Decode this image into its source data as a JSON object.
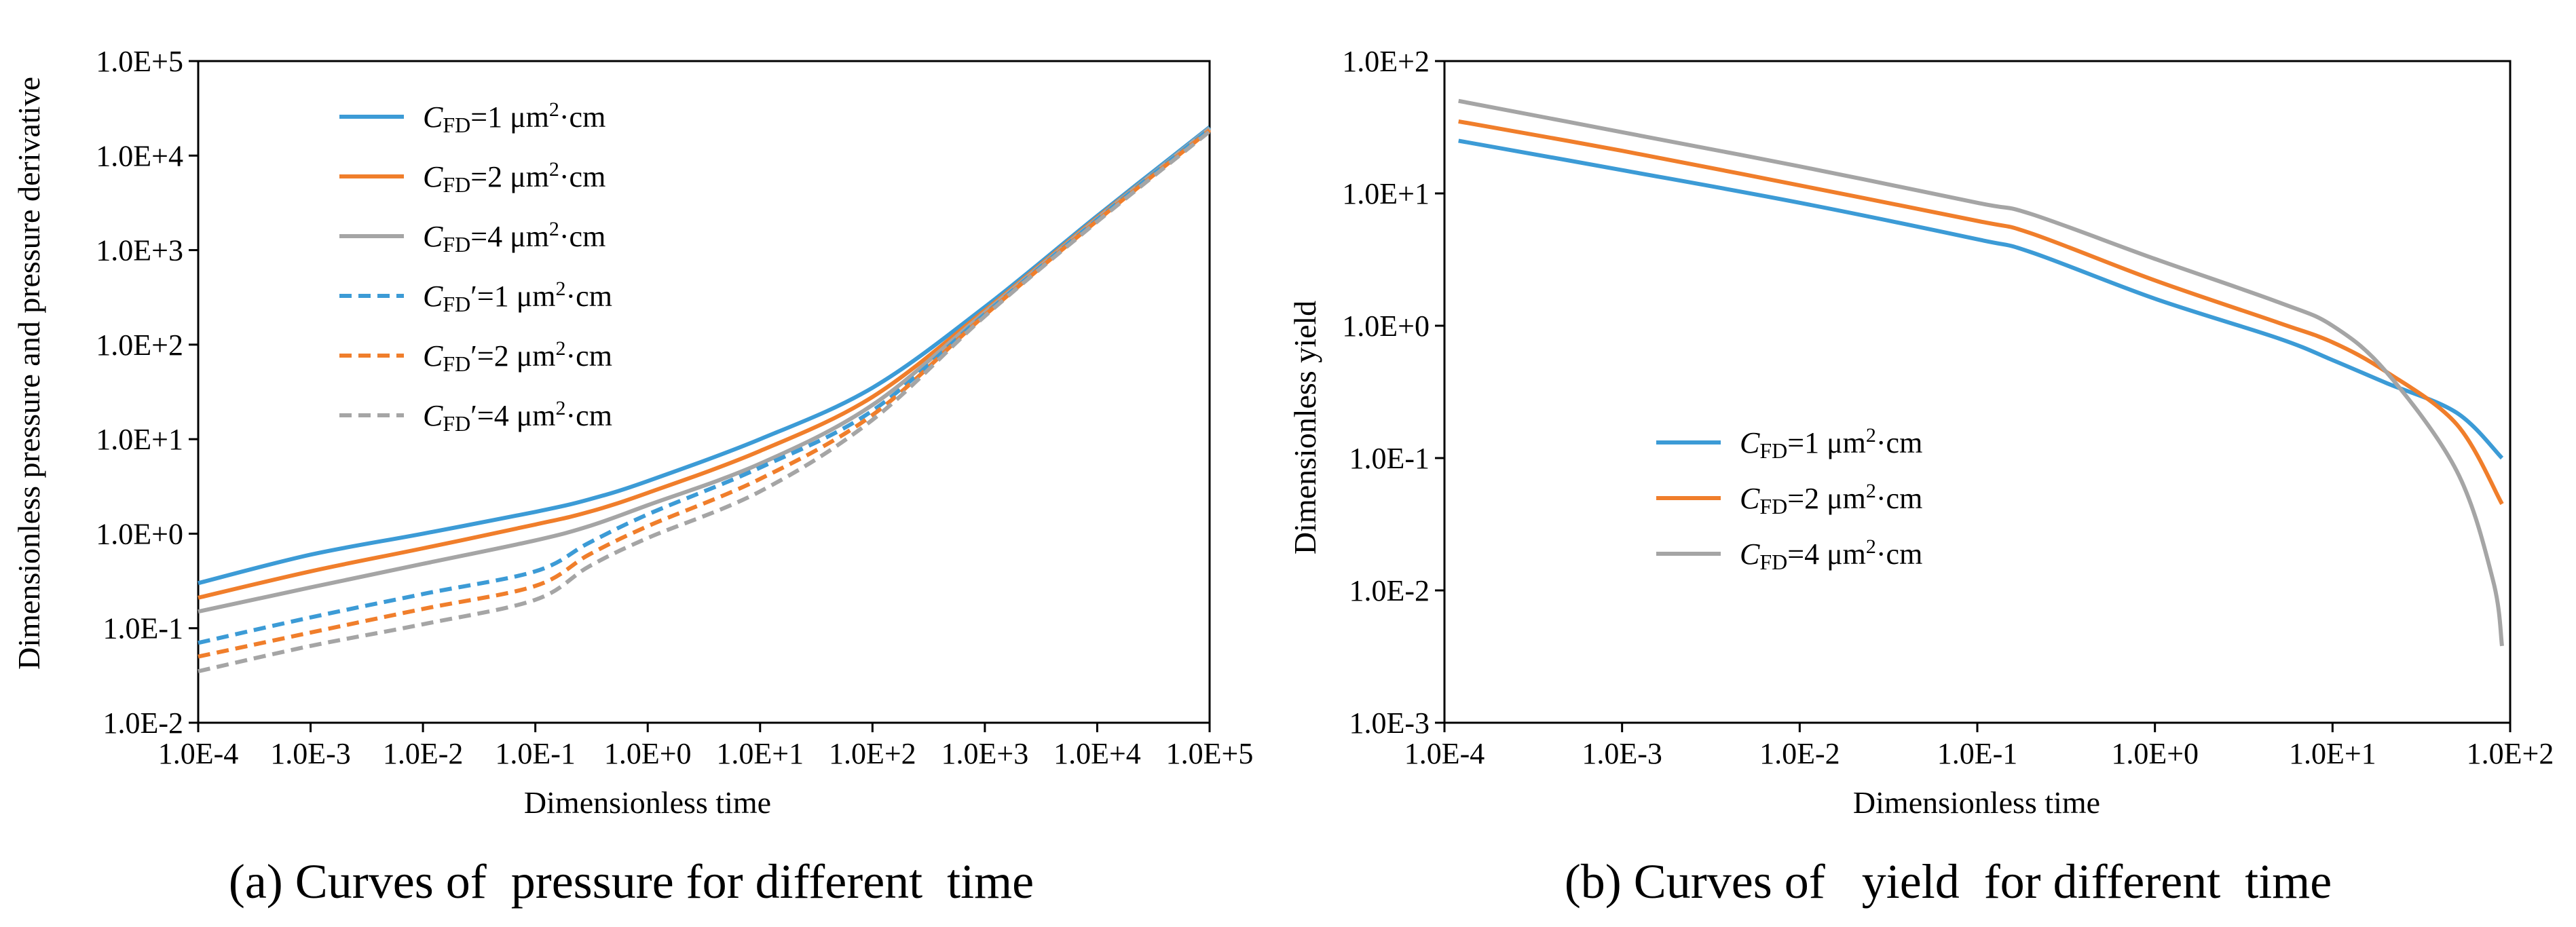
{
  "chart_data": [
    {
      "type": "line",
      "xscale": "log",
      "yscale": "log",
      "xlabel": "Dimensionless time",
      "ylabel": "Dimensionless pressure and pressure derivative",
      "caption": "(a) Curves of  pressure for different  time",
      "xlim": [
        0.0001,
        100000
      ],
      "ylim": [
        0.01,
        100000
      ],
      "xticks": [
        0.0001,
        0.001,
        0.01,
        0.1,
        1,
        10,
        100,
        1000,
        10000,
        100000
      ],
      "xtick_labels": [
        "1.0E-4",
        "1.0E-3",
        "1.0E-2",
        "1.0E-1",
        "1.0E+0",
        "1.0E+1",
        "1.0E+2",
        "1.0E+3",
        "1.0E+4",
        "1.0E+5"
      ],
      "yticks": [
        0.01,
        0.1,
        1,
        10,
        100,
        1000,
        10000,
        100000
      ],
      "ytick_labels": [
        "1.0E-2",
        "1.0E-1",
        "1.0E+0",
        "1.0E+1",
        "1.0E+2",
        "1.0E+3",
        "1.0E+4",
        "1.0E+5"
      ],
      "legend_position": "top-left",
      "series": [
        {
          "name": "CFD=1 μm²·cm",
          "label_main": "C",
          "label_sub": "FD",
          "label_prime": "",
          "label_rest": "=1 μm",
          "label_sup": "2",
          "label_end": "·cm",
          "color": "#3C9BD6",
          "dash": "solid",
          "x": [
            0.0001,
            0.001,
            0.01,
            0.1,
            0.3,
            1,
            10,
            100,
            1000,
            10000,
            100000
          ],
          "y": [
            0.3,
            0.6,
            1.0,
            1.7,
            2.3,
            3.6,
            10,
            35,
            250,
            2300,
            20000
          ]
        },
        {
          "name": "CFD=2 μm²·cm",
          "label_main": "C",
          "label_sub": "FD",
          "label_prime": "",
          "label_rest": "=2 μm",
          "label_sup": "2",
          "label_end": "·cm",
          "color": "#F07E2B",
          "dash": "solid",
          "x": [
            0.0001,
            0.001,
            0.01,
            0.1,
            0.3,
            1,
            10,
            100,
            1000,
            10000,
            100000
          ],
          "y": [
            0.21,
            0.4,
            0.7,
            1.25,
            1.7,
            2.7,
            7.5,
            28,
            230,
            2200,
            19000
          ]
        },
        {
          "name": "CFD=4 μm²·cm",
          "label_main": "C",
          "label_sub": "FD",
          "label_prime": "",
          "label_rest": "=4 μm",
          "label_sup": "2",
          "label_end": "·cm",
          "color": "#A5A5A5",
          "dash": "solid",
          "x": [
            0.0001,
            0.001,
            0.01,
            0.1,
            0.3,
            1,
            10,
            100,
            1000,
            10000,
            100000
          ],
          "y": [
            0.15,
            0.27,
            0.48,
            0.85,
            1.2,
            2.0,
            5.5,
            23,
            220,
            2150,
            19500
          ]
        },
        {
          "name": "CFD'=1 μm²·cm",
          "label_main": "C",
          "label_sub": "FD",
          "label_prime": "′",
          "label_rest": "=1 μm",
          "label_sup": "2",
          "label_end": "·cm",
          "color": "#3C9BD6",
          "dash": "dashed",
          "x": [
            0.0001,
            0.001,
            0.01,
            0.1,
            0.3,
            1,
            10,
            100,
            1000,
            10000,
            100000
          ],
          "y": [
            0.07,
            0.13,
            0.23,
            0.4,
            0.8,
            1.6,
            5.0,
            20,
            210,
            2100,
            19000
          ]
        },
        {
          "name": "CFD'=2 μm²·cm",
          "label_main": "C",
          "label_sub": "FD",
          "label_prime": "′",
          "label_rest": "=2 μm",
          "label_sup": "2",
          "label_end": "·cm",
          "color": "#F07E2B",
          "dash": "dashed",
          "x": [
            0.0001,
            0.001,
            0.01,
            0.1,
            0.3,
            1,
            10,
            100,
            1000,
            10000,
            100000
          ],
          "y": [
            0.05,
            0.09,
            0.16,
            0.28,
            0.6,
            1.2,
            3.8,
            18,
            205,
            2050,
            18500
          ]
        },
        {
          "name": "CFD'=4 μm²·cm",
          "label_main": "C",
          "label_sub": "FD",
          "label_prime": "′",
          "label_rest": "=4 μm",
          "label_sup": "2",
          "label_end": "·cm",
          "color": "#A5A5A5",
          "dash": "dashed",
          "x": [
            0.0001,
            0.001,
            0.01,
            0.1,
            0.3,
            1,
            10,
            100,
            1000,
            10000,
            100000
          ],
          "y": [
            0.035,
            0.065,
            0.11,
            0.2,
            0.45,
            0.9,
            2.8,
            16,
            200,
            2000,
            18000
          ]
        }
      ]
    },
    {
      "type": "line",
      "xscale": "log",
      "yscale": "log",
      "xlabel": "Dimensionless time",
      "ylabel": "Dimensionless yield",
      "caption": "(b) Curves of   yield  for different  time",
      "xlim": [
        0.0001,
        100
      ],
      "ylim": [
        0.001,
        100
      ],
      "xticks": [
        0.0001,
        0.001,
        0.01,
        0.1,
        1,
        10,
        100
      ],
      "xtick_labels": [
        "1.0E-4",
        "1.0E-3",
        "1.0E-2",
        "1.0E-1",
        "1.0E+0",
        "1.0E+1",
        "1.0E+2"
      ],
      "yticks": [
        0.001,
        0.01,
        0.1,
        1,
        10,
        100
      ],
      "ytick_labels": [
        "1.0E-3",
        "1.0E-2",
        "1.0E-1",
        "1.0E+0",
        "1.0E+1",
        "1.0E+2"
      ],
      "legend_position": "lower-left",
      "series": [
        {
          "name": "CFD=1 μm²·cm",
          "label_main": "C",
          "label_sub": "FD",
          "label_prime": "",
          "label_rest": "=1 μm",
          "label_sup": "2",
          "label_end": "·cm",
          "color": "#3C9BD6",
          "dash": "solid",
          "x": [
            0.00012,
            0.001,
            0.01,
            0.1,
            0.2,
            1,
            5,
            10,
            20,
            50,
            90
          ],
          "y": [
            25,
            15,
            8.5,
            4.5,
            3.6,
            1.6,
            0.8,
            0.55,
            0.37,
            0.22,
            0.1
          ]
        },
        {
          "name": "CFD=2 μm²·cm",
          "label_main": "C",
          "label_sub": "FD",
          "label_prime": "",
          "label_rest": "=2 μm",
          "label_sup": "2",
          "label_end": "·cm",
          "color": "#F07E2B",
          "dash": "solid",
          "x": [
            0.00012,
            0.001,
            0.01,
            0.1,
            0.2,
            1,
            5,
            10,
            20,
            50,
            90
          ],
          "y": [
            35,
            21,
            11.5,
            6.2,
            5.0,
            2.2,
            1.05,
            0.75,
            0.45,
            0.18,
            0.045
          ]
        },
        {
          "name": "CFD=4 μm²·cm",
          "label_main": "C",
          "label_sub": "FD",
          "label_prime": "",
          "label_rest": "=4 μm",
          "label_sup": "2",
          "label_end": "·cm",
          "color": "#A5A5A5",
          "dash": "solid",
          "x": [
            0.00012,
            0.001,
            0.01,
            0.1,
            0.2,
            1,
            5,
            10,
            20,
            50,
            80,
            90
          ],
          "y": [
            50,
            29,
            16,
            8.5,
            7.0,
            3.2,
            1.5,
            1.0,
            0.45,
            0.08,
            0.012,
            0.0038
          ]
        }
      ]
    }
  ]
}
